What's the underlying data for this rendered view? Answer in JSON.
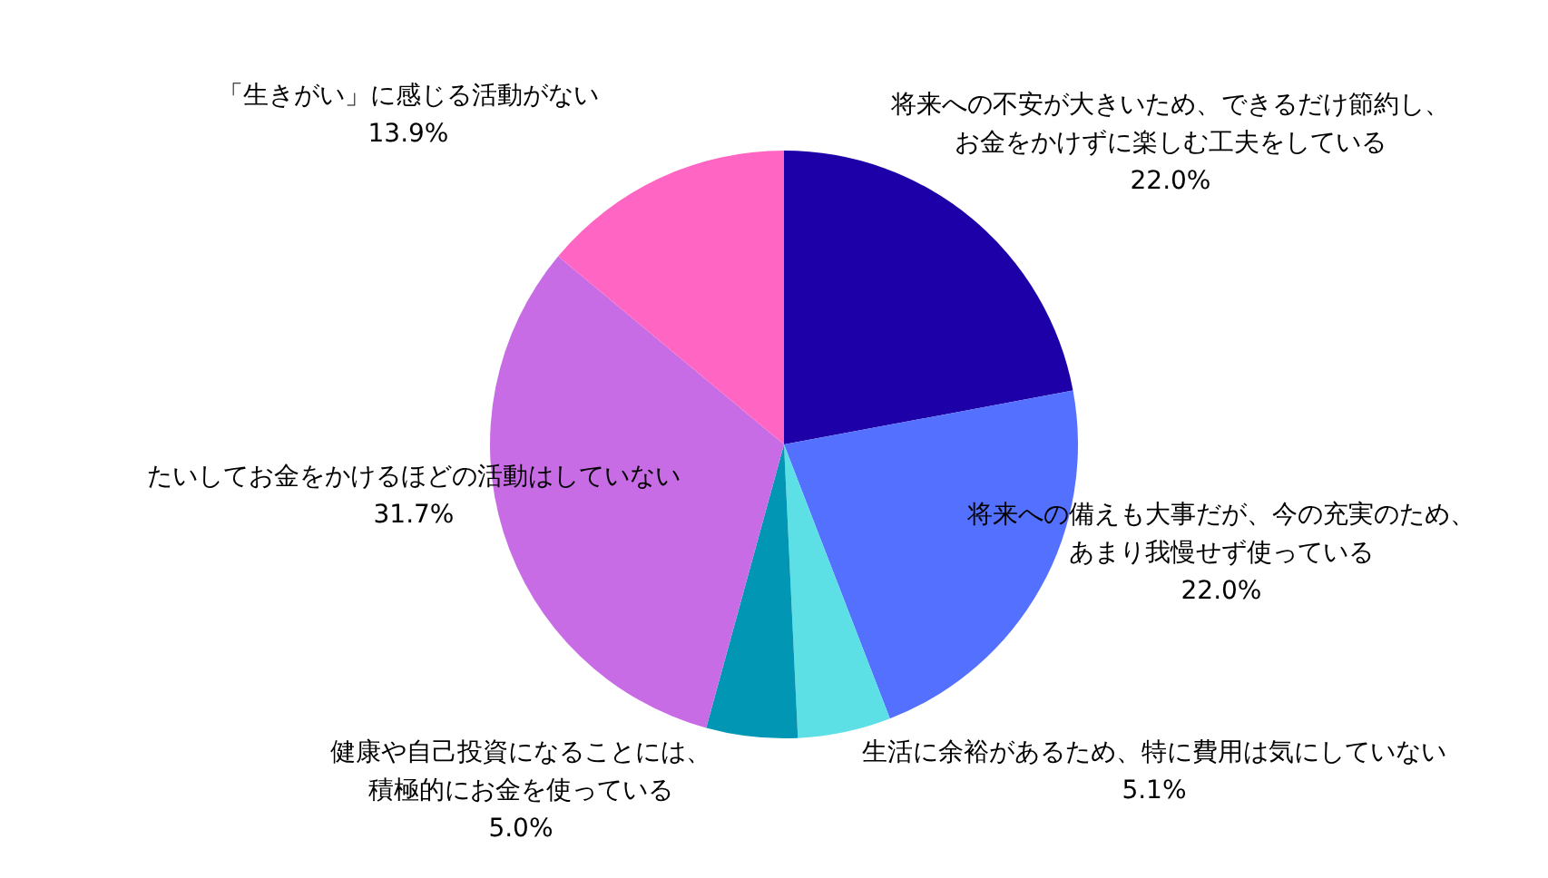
{
  "chart_data": {
    "type": "pie",
    "categories": [
      "将来への不安が大きいため、できるだけ節約し、お金をかけずに楽しむ工夫をしている",
      "将来への備えも大事だが、今の充実のため、あまり我慢せず使っている",
      "生活に余裕があるため、特に費用は気にしていない",
      "健康や自己投資になることには、積極的にお金を使っている",
      "たいしてお金をかけるほどの活動はしていない",
      "「生きがい」に感じる活動がない"
    ],
    "values": [
      22.0,
      22.0,
      5.1,
      5.0,
      31.7,
      13.9
    ],
    "value_labels": [
      "22.0%",
      "22.0%",
      "5.1%",
      "5.0%",
      "31.7%",
      "13.9%"
    ],
    "colors": [
      "#1e00a8",
      "#5470ff",
      "#5ce0e6",
      "#0096b4",
      "#c86ce6",
      "#ff66c4"
    ],
    "legend": false
  }
}
